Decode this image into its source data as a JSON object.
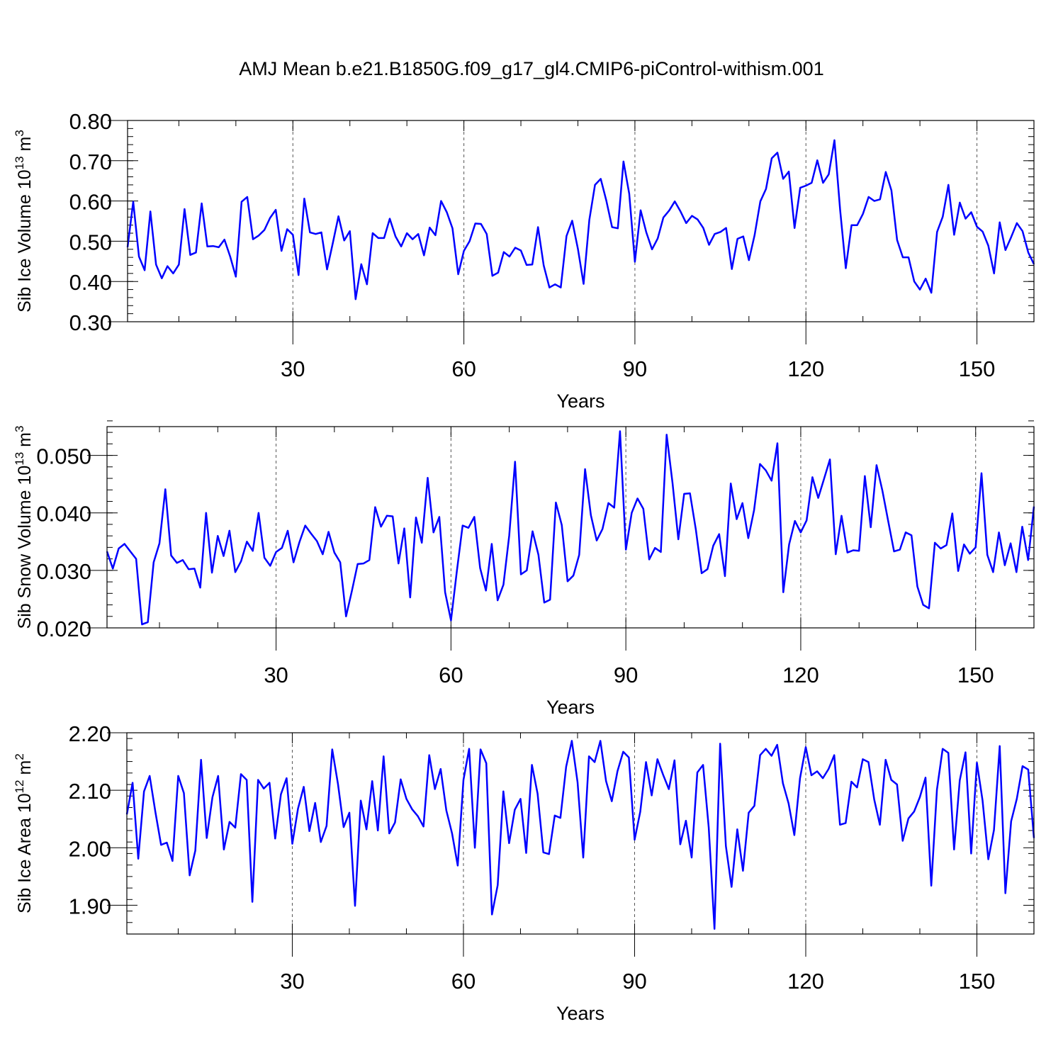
{
  "title": "AMJ Mean b.e21.B1850G.f09_g17_gl4.CMIP6-piControl-withism.001",
  "series_color": "#0000ff",
  "chart_data": [
    {
      "type": "line",
      "ylabel_main": "Sib Ice Volume 10",
      "ylabel_sup": "13",
      "ylabel_unit": " m",
      "ylabel_unit_sup": "3",
      "xlabel": "Years",
      "xlim": [
        1,
        160
      ],
      "xticks": [
        30,
        60,
        90,
        120,
        150
      ],
      "xtick_labels": [
        "30",
        "60",
        "90",
        "120",
        "150"
      ],
      "ylim": [
        0.3,
        0.8
      ],
      "yticks": [
        0.3,
        0.4,
        0.5,
        0.6,
        0.7,
        0.8
      ],
      "ytick_labels": [
        "0.30",
        "0.40",
        "0.50",
        "0.60",
        "0.70",
        "0.80"
      ],
      "grid": "vertical dashed at major x ticks",
      "start_year": 1,
      "values": [
        0.485,
        0.598,
        0.462,
        0.428,
        0.574,
        0.442,
        0.408,
        0.438,
        0.42,
        0.442,
        0.58,
        0.466,
        0.472,
        0.594,
        0.487,
        0.488,
        0.485,
        0.504,
        0.462,
        0.412,
        0.598,
        0.61,
        0.505,
        0.514,
        0.528,
        0.558,
        0.578,
        0.476,
        0.53,
        0.516,
        0.416,
        0.606,
        0.522,
        0.518,
        0.522,
        0.43,
        0.495,
        0.562,
        0.502,
        0.525,
        0.356,
        0.443,
        0.393,
        0.52,
        0.508,
        0.508,
        0.556,
        0.512,
        0.487,
        0.52,
        0.505,
        0.518,
        0.465,
        0.534,
        0.515,
        0.6,
        0.572,
        0.532,
        0.418,
        0.476,
        0.5,
        0.544,
        0.543,
        0.518,
        0.414,
        0.422,
        0.473,
        0.462,
        0.484,
        0.477,
        0.441,
        0.442,
        0.535,
        0.44,
        0.385,
        0.393,
        0.385,
        0.513,
        0.551,
        0.481,
        0.394,
        0.553,
        0.64,
        0.655,
        0.6,
        0.535,
        0.532,
        0.698,
        0.618,
        0.449,
        0.577,
        0.522,
        0.48,
        0.507,
        0.559,
        0.576,
        0.599,
        0.574,
        0.545,
        0.563,
        0.554,
        0.533,
        0.491,
        0.518,
        0.523,
        0.533,
        0.431,
        0.506,
        0.512,
        0.453,
        0.515,
        0.599,
        0.63,
        0.706,
        0.72,
        0.655,
        0.673,
        0.533,
        0.633,
        0.638,
        0.645,
        0.701,
        0.645,
        0.666,
        0.751,
        0.578,
        0.433,
        0.54,
        0.54,
        0.568,
        0.61,
        0.6,
        0.604,
        0.672,
        0.626,
        0.503,
        0.46,
        0.46,
        0.4,
        0.38,
        0.407,
        0.372,
        0.523,
        0.561,
        0.64,
        0.516,
        0.596,
        0.556,
        0.572,
        0.536,
        0.524,
        0.489,
        0.42,
        0.547,
        0.478,
        0.51,
        0.545,
        0.525,
        0.472,
        0.443
      ]
    },
    {
      "type": "line",
      "ylabel_main": "Sib Snow Volume 10",
      "ylabel_sup": "13",
      "ylabel_unit": " m",
      "ylabel_unit_sup": "3",
      "xlabel": "Years",
      "xlim": [
        1,
        160
      ],
      "xticks": [
        30,
        60,
        90,
        120,
        150
      ],
      "xtick_labels": [
        "30",
        "60",
        "90",
        "120",
        "150"
      ],
      "ylim": [
        0.02,
        0.055
      ],
      "yticks": [
        0.02,
        0.03,
        0.04,
        0.05
      ],
      "ytick_labels": [
        "0.020",
        "0.030",
        "0.040",
        "0.050"
      ],
      "grid": "vertical dashed at major x ticks",
      "start_year": 1,
      "values": [
        0.0333,
        0.0303,
        0.0338,
        0.0346,
        0.0333,
        0.032,
        0.0206,
        0.021,
        0.0314,
        0.0347,
        0.0441,
        0.0326,
        0.0313,
        0.0318,
        0.0302,
        0.0303,
        0.027,
        0.04,
        0.0296,
        0.036,
        0.0325,
        0.0369,
        0.0297,
        0.0316,
        0.035,
        0.0334,
        0.04,
        0.0322,
        0.0308,
        0.0332,
        0.0339,
        0.0369,
        0.0314,
        0.0349,
        0.0378,
        0.0364,
        0.0351,
        0.0328,
        0.0367,
        0.0331,
        0.0314,
        0.022,
        0.0264,
        0.0311,
        0.0312,
        0.0318,
        0.041,
        0.0376,
        0.0395,
        0.0394,
        0.0312,
        0.0373,
        0.0253,
        0.0392,
        0.0348,
        0.0461,
        0.0366,
        0.0393,
        0.0262,
        0.0213,
        0.0298,
        0.0378,
        0.0374,
        0.0393,
        0.0304,
        0.0265,
        0.0346,
        0.0248,
        0.0275,
        0.0361,
        0.0489,
        0.0293,
        0.03,
        0.0368,
        0.0327,
        0.0244,
        0.0249,
        0.0418,
        0.0379,
        0.0281,
        0.0291,
        0.0327,
        0.0476,
        0.0396,
        0.0352,
        0.0372,
        0.0417,
        0.0409,
        0.0542,
        0.0336,
        0.04,
        0.0425,
        0.0407,
        0.0319,
        0.0339,
        0.0332,
        0.0536,
        0.0452,
        0.0354,
        0.0433,
        0.0434,
        0.0371,
        0.0295,
        0.0302,
        0.0343,
        0.0363,
        0.029,
        0.0451,
        0.0389,
        0.0417,
        0.0356,
        0.0405,
        0.0485,
        0.0474,
        0.0456,
        0.0521,
        0.0262,
        0.0345,
        0.0386,
        0.0366,
        0.0387,
        0.0462,
        0.0426,
        0.0459,
        0.0493,
        0.0328,
        0.0395,
        0.0331,
        0.0335,
        0.0334,
        0.0464,
        0.0375,
        0.0483,
        0.0439,
        0.0386,
        0.0333,
        0.0336,
        0.0366,
        0.0361,
        0.0272,
        0.024,
        0.0234,
        0.0348,
        0.0338,
        0.0344,
        0.0399,
        0.0299,
        0.0345,
        0.0329,
        0.034,
        0.0469,
        0.0327,
        0.0297,
        0.0366,
        0.0309,
        0.0347,
        0.0297,
        0.0376,
        0.0318,
        0.0411
      ]
    },
    {
      "type": "line",
      "ylabel_main": "Sib Ice Area 10",
      "ylabel_sup": "12",
      "ylabel_unit": " m",
      "ylabel_unit_sup": "2",
      "xlabel": "Years",
      "xlim": [
        1,
        160
      ],
      "xticks": [
        30,
        60,
        90,
        120,
        150
      ],
      "xtick_labels": [
        "30",
        "60",
        "90",
        "120",
        "150"
      ],
      "ylim": [
        1.85,
        2.2
      ],
      "yticks": [
        1.9,
        2.0,
        2.1,
        2.2
      ],
      "ytick_labels": [
        "1.90",
        "2.00",
        "2.10",
        "2.20"
      ],
      "grid": "vertical dashed at major x ticks",
      "start_year": 1,
      "values": [
        2.058,
        2.113,
        1.981,
        2.098,
        2.125,
        2.062,
        2.005,
        2.009,
        1.977,
        2.125,
        2.095,
        1.952,
        1.995,
        2.153,
        2.017,
        2.088,
        2.125,
        1.997,
        2.045,
        2.035,
        2.128,
        2.118,
        1.906,
        2.118,
        2.103,
        2.113,
        2.016,
        2.093,
        2.121,
        2.007,
        2.068,
        2.106,
        2.029,
        2.078,
        2.01,
        2.038,
        2.171,
        2.111,
        2.036,
        2.061,
        1.899,
        2.082,
        2.032,
        2.116,
        2.03,
        2.159,
        2.025,
        2.044,
        2.119,
        2.085,
        2.067,
        2.055,
        2.037,
        2.161,
        2.102,
        2.137,
        2.065,
        2.025,
        1.969,
        2.118,
        2.172,
        2.0,
        2.171,
        2.147,
        1.884,
        1.935,
        2.098,
        2.008,
        2.066,
        2.085,
        1.991,
        2.144,
        2.094,
        1.992,
        1.989,
        2.056,
        2.052,
        2.141,
        2.186,
        2.114,
        1.983,
        2.159,
        2.149,
        2.186,
        2.116,
        2.081,
        2.133,
        2.167,
        2.157,
        2.014,
        2.063,
        2.149,
        2.091,
        2.154,
        2.127,
        2.102,
        2.152,
        2.006,
        2.047,
        1.983,
        2.131,
        2.144,
        2.035,
        1.859,
        2.181,
        2.003,
        1.932,
        2.032,
        1.96,
        2.061,
        2.073,
        2.161,
        2.172,
        2.16,
        2.179,
        2.112,
        2.077,
        2.022,
        2.121,
        2.175,
        2.126,
        2.133,
        2.121,
        2.137,
        2.161,
        2.04,
        2.043,
        2.115,
        2.105,
        2.154,
        2.149,
        2.084,
        2.04,
        2.153,
        2.118,
        2.11,
        2.012,
        2.051,
        2.063,
        2.088,
        2.122,
        1.934,
        2.101,
        2.172,
        2.165,
        1.997,
        2.117,
        2.166,
        1.99,
        2.148,
        2.082,
        1.98,
        2.031,
        2.177,
        1.921,
        2.046,
        2.085,
        2.142,
        2.136,
        2.017
      ]
    }
  ]
}
